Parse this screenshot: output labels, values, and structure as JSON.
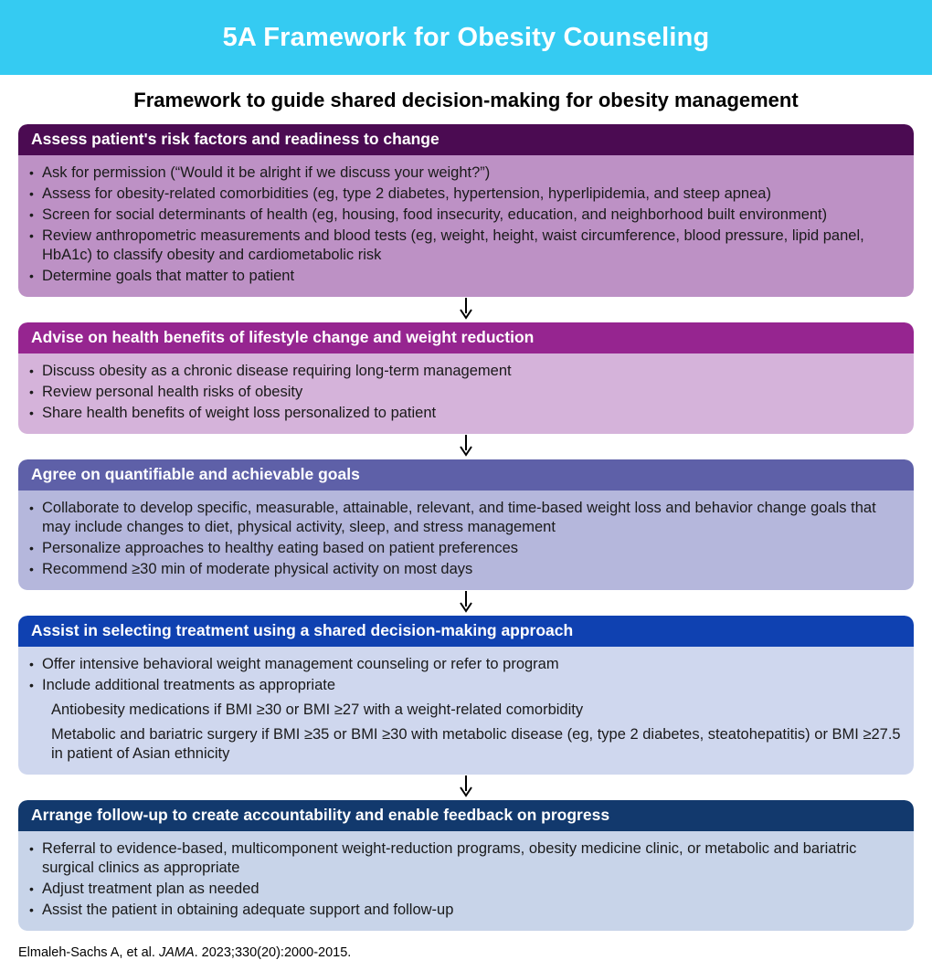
{
  "banner": {
    "title": "5A Framework for Obesity Counseling",
    "background": "#35CBF2"
  },
  "subtitle": "Framework to guide shared decision-making for obesity management",
  "sections": [
    {
      "id": "assess",
      "title": "Assess patient's risk factors and readiness to change",
      "header_color": "#4B0B52",
      "body_color": "#BD91C5",
      "bullets": [
        {
          "sub": false,
          "text": "Ask for permission (“Would it be alright if we discuss your weight?”)"
        },
        {
          "sub": false,
          "text": "Assess for obesity-related comorbidities (eg, type 2 diabetes, hypertension, hyperlipidemia, and steep apnea)"
        },
        {
          "sub": false,
          "text": "Screen for social determinants of health (eg, housing, food insecurity, education, and neighborhood built environment)"
        },
        {
          "sub": false,
          "text": "Review anthropometric measurements and blood tests (eg, weight, height, waist circumference, blood pressure, lipid panel, HbA1c) to classify obesity and cardiometabolic risk"
        },
        {
          "sub": false,
          "text": "Determine goals that matter to patient"
        }
      ]
    },
    {
      "id": "advise",
      "title": "Advise on health benefits of lifestyle change and weight reduction",
      "header_color": "#962590",
      "body_color": "#D5B3DA",
      "bullets": [
        {
          "sub": false,
          "text": "Discuss obesity as a chronic disease requiring long-term management"
        },
        {
          "sub": false,
          "text": "Review personal health risks of obesity"
        },
        {
          "sub": false,
          "text": "Share health benefits of weight loss personalized to patient"
        }
      ]
    },
    {
      "id": "agree",
      "title": "Agree on quantifiable and achievable goals",
      "header_color": "#5E60A8",
      "body_color": "#B5B7DC",
      "bullets": [
        {
          "sub": false,
          "text": "Collaborate to develop specific, measurable, attainable, relevant, and time-based weight loss and behavior change goals that may include changes to diet, physical activity, sleep, and stress management"
        },
        {
          "sub": false,
          "text": "Personalize approaches to healthy eating based on patient preferences"
        },
        {
          "sub": false,
          "text": "Recommend ≥30 min of moderate physical activity on most days"
        }
      ]
    },
    {
      "id": "assist",
      "title": "Assist in selecting treatment using a shared decision-making approach",
      "header_color": "#0F41B1",
      "body_color": "#CFD7EE",
      "bullets": [
        {
          "sub": false,
          "text": "Offer intensive behavioral weight management counseling or refer to program"
        },
        {
          "sub": false,
          "text": "Include additional treatments as appropriate"
        },
        {
          "sub": true,
          "text": "Antiobesity medications if BMI ≥30 or BMI ≥27 with a weight-related comorbidity"
        },
        {
          "sub": true,
          "text": "Metabolic and bariatric surgery if BMI ≥35 or BMI ≥30 with metabolic disease (eg, type 2 diabetes, steatohepatitis) or BMI ≥27.5 in patient of Asian ethnicity"
        }
      ]
    },
    {
      "id": "arrange",
      "title": "Arrange follow-up to create accountability and enable feedback on progress",
      "header_color": "#12396D",
      "body_color": "#C8D4E9",
      "bullets": [
        {
          "sub": false,
          "text": "Referral to evidence-based, multicomponent weight-reduction programs, obesity medicine clinic, or metabolic and bariatric surgical clinics as appropriate"
        },
        {
          "sub": false,
          "text": "Adjust treatment plan as needed"
        },
        {
          "sub": false,
          "text": "Assist the patient in obtaining adequate support and follow-up"
        }
      ]
    }
  ],
  "arrow_color": "#000000",
  "bullet_glyph": "•",
  "citation": {
    "prefix": "Elmaleh-Sachs A, et al. ",
    "journal": "JAMA",
    "suffix": ". 2023;330(20):2000-2015."
  }
}
